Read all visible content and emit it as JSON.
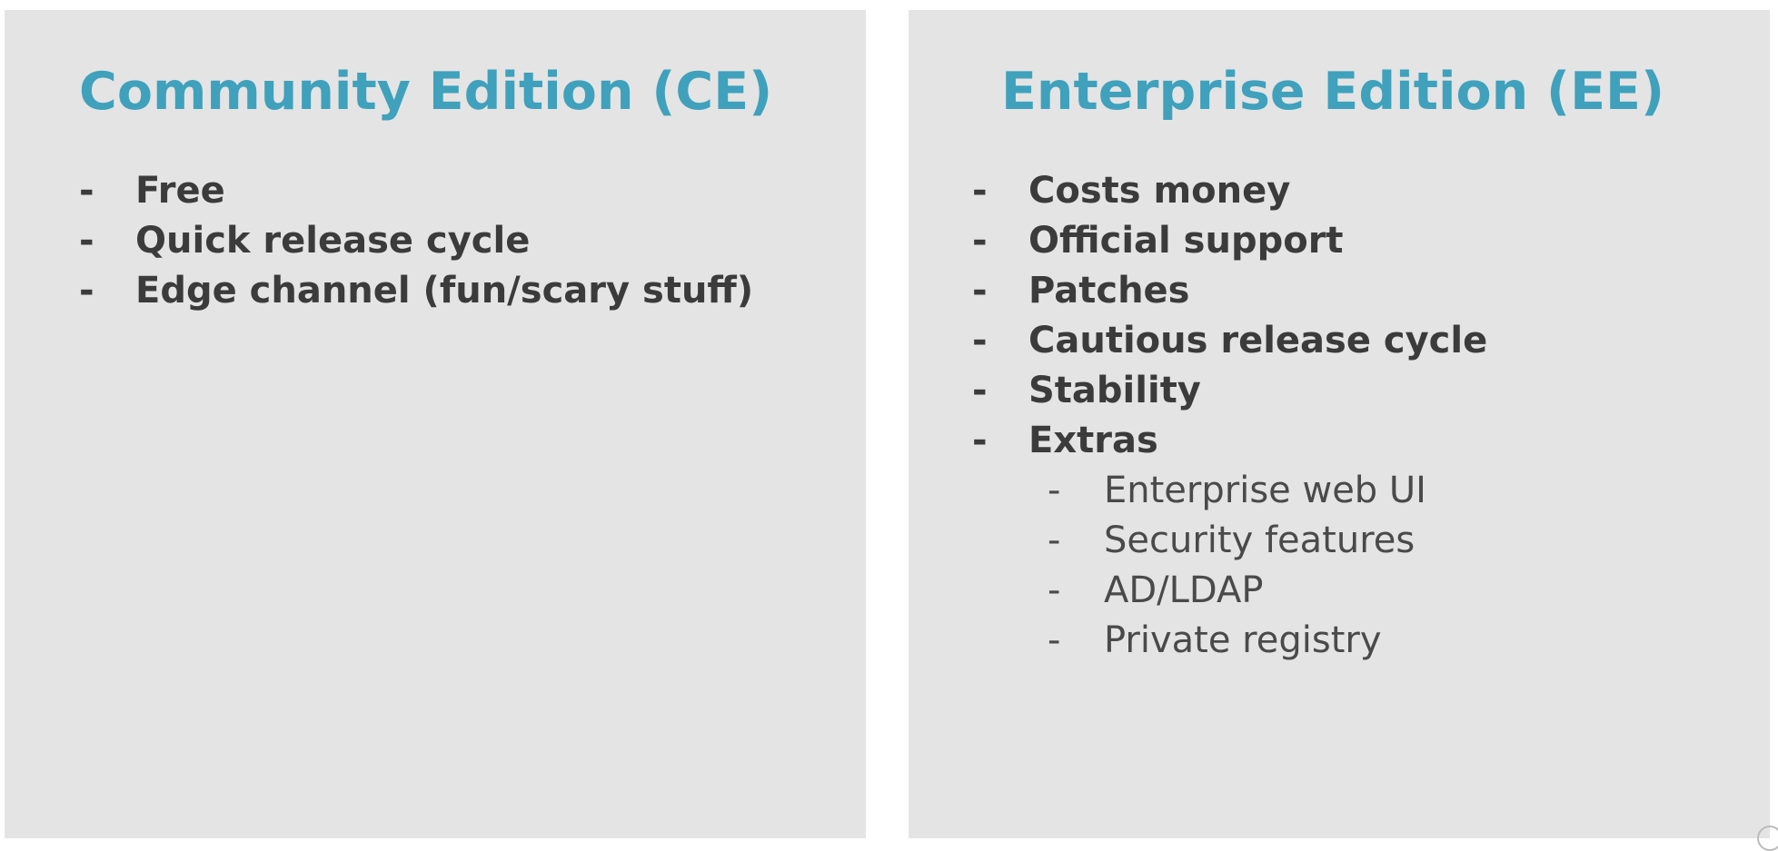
{
  "left_panel": {
    "title": "Community Edition (CE)",
    "items": [
      {
        "bullet": "-",
        "label": "Free"
      },
      {
        "bullet": "-",
        "label": "Quick release cycle"
      },
      {
        "bullet": "-",
        "label": "Edge channel (fun/scary stuff)"
      }
    ]
  },
  "right_panel": {
    "title": "Enterprise Edition (EE)",
    "items": [
      {
        "bullet": "-",
        "label": "Costs money"
      },
      {
        "bullet": "-",
        "label": "Official support"
      },
      {
        "bullet": "-",
        "label": "Patches"
      },
      {
        "bullet": "-",
        "label": "Cautious release cycle"
      },
      {
        "bullet": "-",
        "label": "Stability"
      },
      {
        "bullet": "-",
        "label": "Extras"
      }
    ],
    "sub_items": [
      {
        "bullet": "-",
        "label": "Enterprise web UI"
      },
      {
        "bullet": "-",
        "label": "Security features"
      },
      {
        "bullet": "-",
        "label": "AD/LDAP"
      },
      {
        "bullet": "-",
        "label": "Private registry"
      }
    ]
  },
  "colors": {
    "title": "#3fa1bc",
    "panel_background": "#e4e4e4",
    "body_text": "#3b3b3b"
  }
}
